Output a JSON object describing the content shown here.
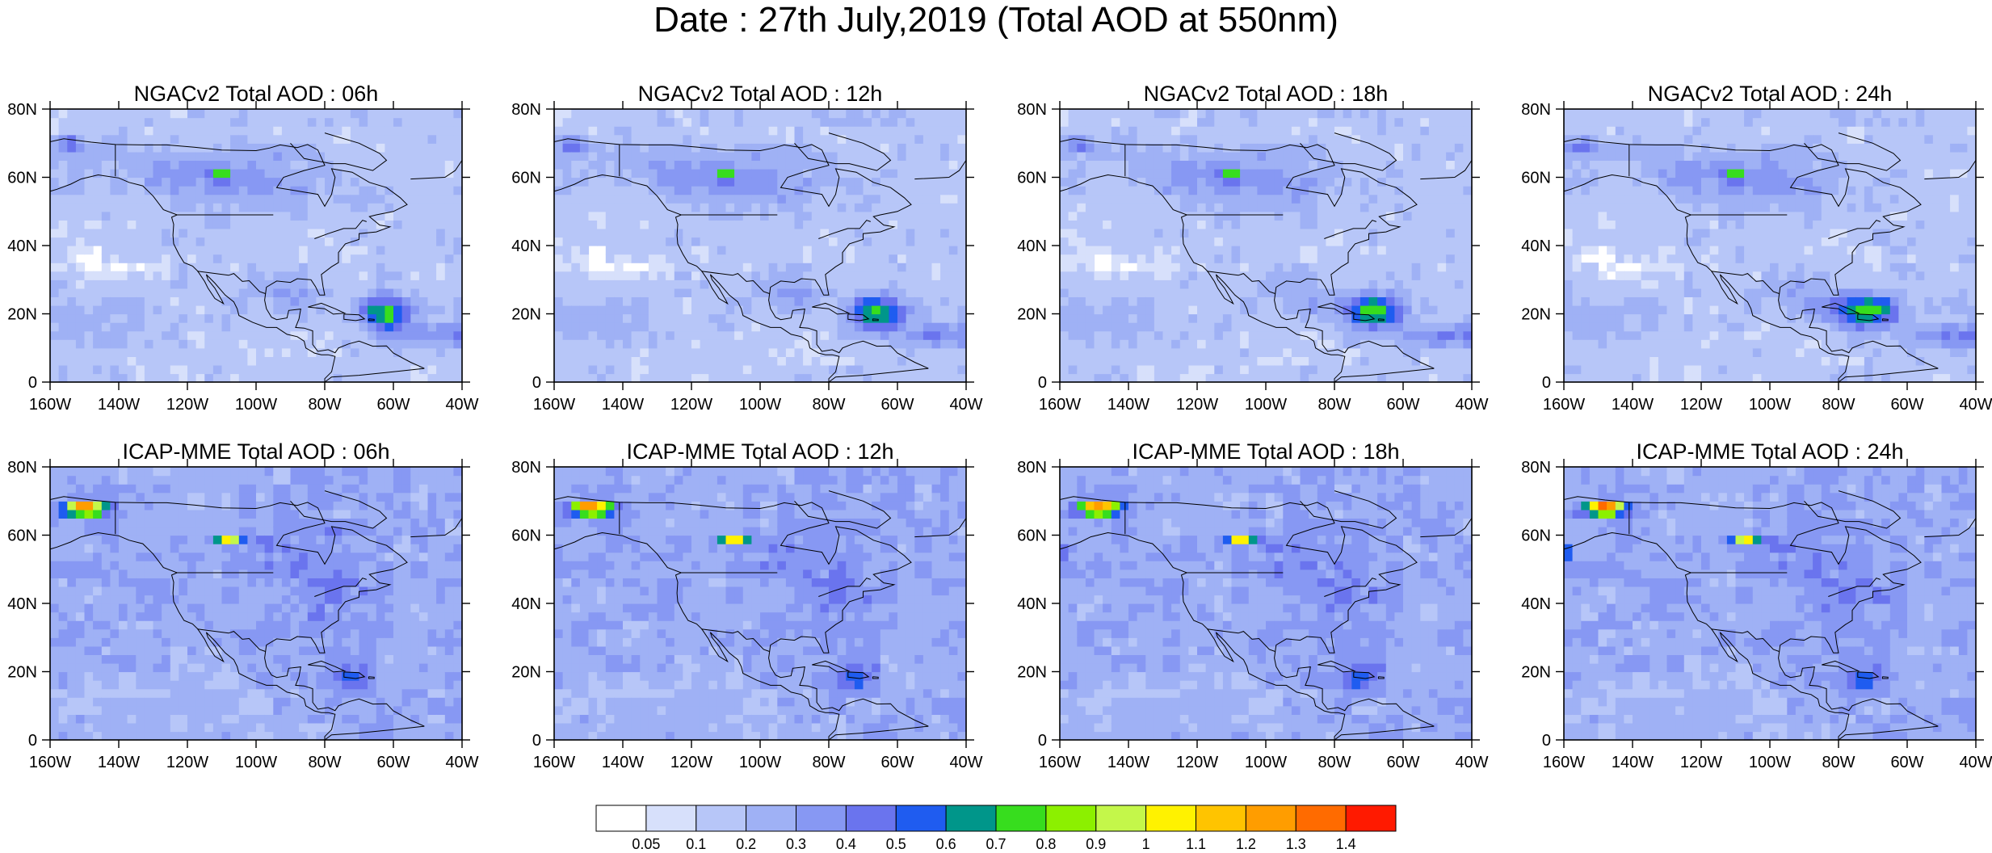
{
  "title": "Date : 27th July,2019 (Total AOD at 550nm)",
  "panels": [
    {
      "id": "ngac-06",
      "title": "NGACv2 Total AOD : 06h",
      "model": "ngac",
      "hour": 6
    },
    {
      "id": "ngac-12",
      "title": "NGACv2 Total AOD : 12h",
      "model": "ngac",
      "hour": 12
    },
    {
      "id": "ngac-18",
      "title": "NGACv2 Total AOD : 18h",
      "model": "ngac",
      "hour": 18
    },
    {
      "id": "ngac-24",
      "title": "NGACv2 Total AOD : 24h",
      "model": "ngac",
      "hour": 24
    },
    {
      "id": "icap-06",
      "title": "ICAP-MME Total AOD : 06h",
      "model": "icap",
      "hour": 6
    },
    {
      "id": "icap-12",
      "title": "ICAP-MME Total AOD : 12h",
      "model": "icap",
      "hour": 12
    },
    {
      "id": "icap-18",
      "title": "ICAP-MME Total AOD : 18h",
      "model": "icap",
      "hour": 18
    },
    {
      "id": "icap-24",
      "title": "ICAP-MME Total AOD : 24h",
      "model": "icap",
      "hour": 24
    }
  ],
  "axes": {
    "lon_range": [
      -160,
      -40
    ],
    "lat_range": [
      0,
      80
    ],
    "lon_ticks": [
      {
        "value": -160,
        "label": "160W"
      },
      {
        "value": -140,
        "label": "140W"
      },
      {
        "value": -120,
        "label": "120W"
      },
      {
        "value": -100,
        "label": "100W"
      },
      {
        "value": -80,
        "label": "80W"
      },
      {
        "value": -60,
        "label": "60W"
      },
      {
        "value": -40,
        "label": "40W"
      }
    ],
    "lat_ticks": [
      {
        "value": 0,
        "label": "0"
      },
      {
        "value": 20,
        "label": "20N"
      },
      {
        "value": 40,
        "label": "40N"
      },
      {
        "value": 60,
        "label": "60N"
      },
      {
        "value": 80,
        "label": "80N"
      }
    ]
  },
  "colorbar": {
    "levels": [
      "0.05",
      "0.1",
      "0.2",
      "0.3",
      "0.4",
      "0.5",
      "0.6",
      "0.7",
      "0.8",
      "0.9",
      "1",
      "1.1",
      "1.2",
      "1.3",
      "1.4"
    ],
    "colors": [
      "#ffffff",
      "#d7e0fb",
      "#b7c6f8",
      "#9fb1f5",
      "#8798f3",
      "#6a74ee",
      "#1f5cf0",
      "#00968a",
      "#37dd1e",
      "#8cf000",
      "#c4f74a",
      "#fff200",
      "#ffc400",
      "#ff9d00",
      "#ff6b00",
      "#ff1a00"
    ]
  }
}
